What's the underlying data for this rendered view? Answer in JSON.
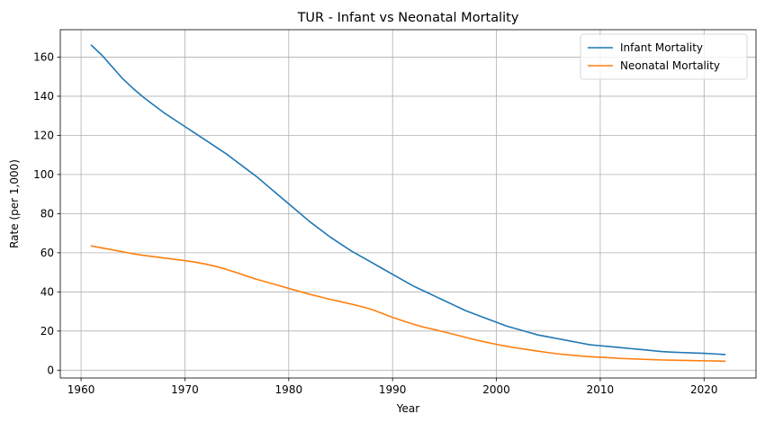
{
  "chart_data": {
    "type": "line",
    "title": "TUR - Infant vs Neonatal Mortality",
    "xlabel": "Year",
    "ylabel": "Rate (per 1,000)",
    "xlim": [
      1958,
      2025
    ],
    "ylim": [
      -4,
      174
    ],
    "xticks": [
      1960,
      1970,
      1980,
      1990,
      2000,
      2010,
      2020
    ],
    "yticks": [
      0,
      20,
      40,
      60,
      80,
      100,
      120,
      140,
      160
    ],
    "grid": true,
    "legend_position": "top-right",
    "x": [
      1961,
      1962,
      1963,
      1964,
      1965,
      1966,
      1967,
      1968,
      1969,
      1970,
      1971,
      1972,
      1973,
      1974,
      1975,
      1976,
      1977,
      1978,
      1979,
      1980,
      1981,
      1982,
      1983,
      1984,
      1985,
      1986,
      1987,
      1988,
      1989,
      1990,
      1991,
      1992,
      1993,
      1994,
      1995,
      1996,
      1997,
      1998,
      1999,
      2000,
      2001,
      2002,
      2003,
      2004,
      2005,
      2006,
      2007,
      2008,
      2009,
      2010,
      2011,
      2012,
      2013,
      2014,
      2015,
      2016,
      2017,
      2018,
      2019,
      2020,
      2021,
      2022
    ],
    "series": [
      {
        "name": "Infant Mortality",
        "color": "#1f77b4",
        "values": [
          166,
          161,
          155,
          149,
          144,
          139.5,
          135.5,
          131.5,
          128,
          124.5,
          121,
          117.5,
          114,
          110.5,
          106.5,
          102.5,
          98.5,
          94,
          89.5,
          85,
          80.5,
          76,
          72,
          68,
          64.5,
          61,
          58,
          55,
          52,
          49,
          46,
          43,
          40.5,
          38,
          35.5,
          33,
          30.5,
          28.5,
          26.5,
          24.5,
          22.5,
          21,
          19.5,
          18,
          17,
          16,
          15,
          14,
          13,
          12.5,
          12,
          11.5,
          11,
          10.5,
          10,
          9.5,
          9.2,
          9,
          8.8,
          8.6,
          8.3,
          8
        ]
      },
      {
        "name": "Neonatal Mortality",
        "color": "#ff7f0e",
        "values": [
          63.5,
          62.5,
          61.5,
          60.5,
          59.5,
          58.7,
          58,
          57.3,
          56.7,
          56,
          55.2,
          54.2,
          53,
          51.5,
          49.8,
          48,
          46.3,
          44.8,
          43.3,
          41.8,
          40.3,
          38.8,
          37.5,
          36.2,
          35,
          33.8,
          32.5,
          31,
          29,
          27,
          25.2,
          23.5,
          22,
          20.8,
          19.5,
          18.2,
          16.8,
          15.5,
          14.3,
          13.2,
          12.2,
          11.3,
          10.5,
          9.7,
          9,
          8.3,
          7.8,
          7.3,
          6.9,
          6.6,
          6.3,
          6,
          5.8,
          5.6,
          5.4,
          5.2,
          5.1,
          5,
          4.9,
          4.8,
          4.7,
          4.6
        ]
      }
    ]
  }
}
